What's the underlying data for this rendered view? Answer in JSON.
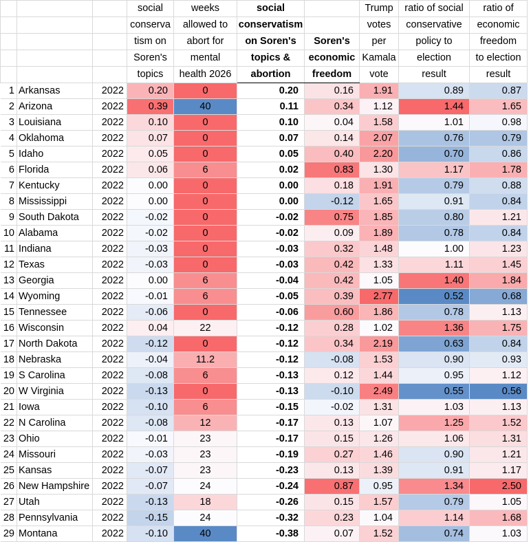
{
  "headers": {
    "social_conservatism": [
      "social",
      "conserva",
      "tism on",
      "Soren's",
      "topics"
    ],
    "weeks_allowed": [
      "weeks",
      "allowed to",
      "abort for",
      "mental",
      "health 2026"
    ],
    "combined": [
      "social",
      "conservatism",
      "on Soren's",
      "topics &",
      "abortion"
    ],
    "economic_freedom": [
      "Soren's",
      "economic",
      "freedom"
    ],
    "trump_votes": [
      "Trump",
      "votes",
      "per",
      "Kamala",
      "vote"
    ],
    "ratio_social": [
      "ratio of social",
      "conservative",
      "policy to",
      "election",
      "result"
    ],
    "ratio_economic": [
      "ratio of",
      "economic",
      "freedom",
      "to election",
      "result"
    ]
  },
  "colors": {
    "red_strong": "#f8696b",
    "blue_strong": "#5a8ac6",
    "white": "#fcfcff"
  },
  "rows": [
    {
      "n": "1",
      "state": "Arkansas",
      "year": "2022",
      "sc": "0.20",
      "wk": "0",
      "comb": "0.20",
      "ef": "0.16",
      "tv": "1.91",
      "rs": "0.89",
      "re": "0.87"
    },
    {
      "n": "2",
      "state": "Arizona",
      "year": "2022",
      "sc": "0.39",
      "wk": "40",
      "comb": "0.11",
      "ef": "0.34",
      "tv": "1.12",
      "rs": "1.44",
      "re": "1.65"
    },
    {
      "n": "3",
      "state": "Louisiana",
      "year": "2022",
      "sc": "0.10",
      "wk": "0",
      "comb": "0.10",
      "ef": "0.04",
      "tv": "1.58",
      "rs": "1.01",
      "re": "0.98"
    },
    {
      "n": "4",
      "state": "Oklahoma",
      "year": "2022",
      "sc": "0.07",
      "wk": "0",
      "comb": "0.07",
      "ef": "0.14",
      "tv": "2.07",
      "rs": "0.76",
      "re": "0.79"
    },
    {
      "n": "5",
      "state": "Idaho",
      "year": "2022",
      "sc": "0.05",
      "wk": "0",
      "comb": "0.05",
      "ef": "0.40",
      "tv": "2.20",
      "rs": "0.70",
      "re": "0.86"
    },
    {
      "n": "6",
      "state": "Florida",
      "year": "2022",
      "sc": "0.06",
      "wk": "6",
      "comb": "0.02",
      "ef": "0.83",
      "tv": "1.30",
      "rs": "1.17",
      "re": "1.78"
    },
    {
      "n": "7",
      "state": "Kentucky",
      "year": "2022",
      "sc": "0.00",
      "wk": "0",
      "comb": "0.00",
      "ef": "0.18",
      "tv": "1.91",
      "rs": "0.79",
      "re": "0.88"
    },
    {
      "n": "8",
      "state": "Mississippi",
      "year": "2022",
      "sc": "0.00",
      "wk": "0",
      "comb": "0.00",
      "ef": "-0.12",
      "tv": "1.65",
      "rs": "0.91",
      "re": "0.84"
    },
    {
      "n": "9",
      "state": "South Dakota",
      "year": "2022",
      "sc": "-0.02",
      "wk": "0",
      "comb": "-0.02",
      "ef": "0.75",
      "tv": "1.85",
      "rs": "0.80",
      "re": "1.21"
    },
    {
      "n": "10",
      "state": "Alabama",
      "year": "2022",
      "sc": "-0.02",
      "wk": "0",
      "comb": "-0.02",
      "ef": "0.09",
      "tv": "1.89",
      "rs": "0.78",
      "re": "0.84"
    },
    {
      "n": "11",
      "state": "Indiana",
      "year": "2022",
      "sc": "-0.03",
      "wk": "0",
      "comb": "-0.03",
      "ef": "0.32",
      "tv": "1.48",
      "rs": "1.00",
      "re": "1.23"
    },
    {
      "n": "12",
      "state": "Texas",
      "year": "2022",
      "sc": "-0.03",
      "wk": "0",
      "comb": "-0.03",
      "ef": "0.42",
      "tv": "1.33",
      "rs": "1.11",
      "re": "1.45"
    },
    {
      "n": "13",
      "state": "Georgia",
      "year": "2022",
      "sc": "0.00",
      "wk": "6",
      "comb": "-0.04",
      "ef": "0.42",
      "tv": "1.05",
      "rs": "1.40",
      "re": "1.84"
    },
    {
      "n": "14",
      "state": "Wyoming",
      "year": "2022",
      "sc": "-0.01",
      "wk": "6",
      "comb": "-0.05",
      "ef": "0.39",
      "tv": "2.77",
      "rs": "0.52",
      "re": "0.68"
    },
    {
      "n": "15",
      "state": "Tennessee",
      "year": "2022",
      "sc": "-0.06",
      "wk": "0",
      "comb": "-0.06",
      "ef": "0.60",
      "tv": "1.86",
      "rs": "0.78",
      "re": "1.13"
    },
    {
      "n": "16",
      "state": "Wisconsin",
      "year": "2022",
      "sc": "0.04",
      "wk": "22",
      "comb": "-0.12",
      "ef": "0.28",
      "tv": "1.02",
      "rs": "1.36",
      "re": "1.75"
    },
    {
      "n": "17",
      "state": "North Dakota",
      "year": "2022",
      "sc": "-0.12",
      "wk": "0",
      "comb": "-0.12",
      "ef": "0.34",
      "tv": "2.19",
      "rs": "0.63",
      "re": "0.84"
    },
    {
      "n": "18",
      "state": "Nebraska",
      "year": "2022",
      "sc": "-0.04",
      "wk": "11.2",
      "comb": "-0.12",
      "ef": "-0.08",
      "tv": "1.53",
      "rs": "0.90",
      "re": "0.93"
    },
    {
      "n": "19",
      "state": "S Carolina",
      "year": "2022",
      "sc": "-0.08",
      "wk": "6",
      "comb": "-0.13",
      "ef": "0.12",
      "tv": "1.44",
      "rs": "0.95",
      "re": "1.12"
    },
    {
      "n": "20",
      "state": "W Virginia",
      "year": "2022",
      "sc": "-0.13",
      "wk": "0",
      "comb": "-0.13",
      "ef": "-0.10",
      "tv": "2.49",
      "rs": "0.55",
      "re": "0.56"
    },
    {
      "n": "21",
      "state": "Iowa",
      "year": "2022",
      "sc": "-0.10",
      "wk": "6",
      "comb": "-0.15",
      "ef": "-0.02",
      "tv": "1.31",
      "rs": "1.03",
      "re": "1.13"
    },
    {
      "n": "22",
      "state": "N Carolina",
      "year": "2022",
      "sc": "-0.08",
      "wk": "12",
      "comb": "-0.17",
      "ef": "0.13",
      "tv": "1.07",
      "rs": "1.25",
      "re": "1.52"
    },
    {
      "n": "23",
      "state": "Ohio",
      "year": "2022",
      "sc": "-0.01",
      "wk": "23",
      "comb": "-0.17",
      "ef": "0.15",
      "tv": "1.26",
      "rs": "1.06",
      "re": "1.31"
    },
    {
      "n": "24",
      "state": "Missouri",
      "year": "2022",
      "sc": "-0.03",
      "wk": "23",
      "comb": "-0.19",
      "ef": "0.27",
      "tv": "1.46",
      "rs": "0.90",
      "re": "1.21"
    },
    {
      "n": "25",
      "state": "Kansas",
      "year": "2022",
      "sc": "-0.07",
      "wk": "23",
      "comb": "-0.23",
      "ef": "0.13",
      "tv": "1.39",
      "rs": "0.91",
      "re": "1.17"
    },
    {
      "n": "26",
      "state": "New Hampshire",
      "year": "2022",
      "sc": "-0.07",
      "wk": "24",
      "comb": "-0.24",
      "ef": "0.87",
      "tv": "0.95",
      "rs": "1.34",
      "re": "2.50"
    },
    {
      "n": "27",
      "state": "Utah",
      "year": "2022",
      "sc": "-0.13",
      "wk": "18",
      "comb": "-0.26",
      "ef": "0.15",
      "tv": "1.57",
      "rs": "0.79",
      "re": "1.05"
    },
    {
      "n": "28",
      "state": "Pennsylvania",
      "year": "2022",
      "sc": "-0.15",
      "wk": "24",
      "comb": "-0.32",
      "ef": "0.23",
      "tv": "1.04",
      "rs": "1.14",
      "re": "1.68"
    },
    {
      "n": "29",
      "state": "Montana",
      "year": "2022",
      "sc": "-0.10",
      "wk": "40",
      "comb": "-0.38",
      "ef": "0.07",
      "tv": "1.52",
      "rs": "0.74",
      "re": "1.03"
    }
  ]
}
